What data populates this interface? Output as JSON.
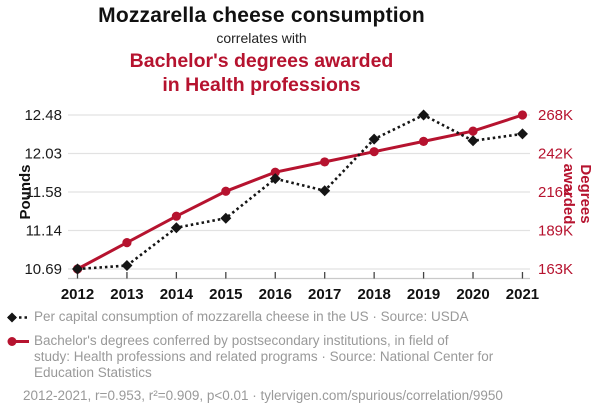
{
  "header": {
    "title": "Mozzarella cheese consumption",
    "connector": "correlates with",
    "subtitle_line1": "Bachelor's degrees awarded",
    "subtitle_line2": "in Health professions"
  },
  "chart_data": {
    "type": "line",
    "x": [
      2012,
      2013,
      2014,
      2015,
      2016,
      2017,
      2018,
      2019,
      2020,
      2021
    ],
    "series": [
      {
        "name": "Per capital consumption of mozzarella cheese in the US",
        "axis": "left",
        "color": "#151515",
        "line_style": "dashed",
        "marker": "diamond",
        "values": [
          10.69,
          10.73,
          11.17,
          11.28,
          11.74,
          11.6,
          12.2,
          12.48,
          12.18,
          12.26
        ]
      },
      {
        "name": "Bachelor's degrees conferred by postsecondary institutions, in field of study: Health professions and related programs",
        "axis": "right",
        "color": "#b6132f",
        "line_style": "solid",
        "marker": "circle",
        "values": [
          163000,
          181000,
          199000,
          216000,
          229000,
          236000,
          243000,
          250000,
          257000,
          268000
        ]
      }
    ],
    "left_axis": {
      "label": "Pounds",
      "min": 10.69,
      "max": 12.48,
      "ticks": [
        "12.48",
        "12.03",
        "11.58",
        "11.14",
        "10.69"
      ]
    },
    "right_axis": {
      "label": "Degrees awarded",
      "min": 163000,
      "max": 268000,
      "ticks": [
        "268K",
        "242K",
        "216K",
        "189K",
        "163K"
      ]
    },
    "grid": true,
    "legend_position": "bottom"
  },
  "legend": {
    "items": [
      {
        "marker": "black-diamond-dashed",
        "lines": [
          "Per capital consumption of mozzarella cheese in the US · Source: USDA"
        ]
      },
      {
        "marker": "red-circle-solid",
        "lines": [
          "Bachelor's degrees conferred by postsecondary institutions, in field of",
          "study: Health professions and related programs · Source: National Center for",
          "Education Statistics"
        ]
      }
    ]
  },
  "footer": {
    "stats": "2012-2021, r=0.953, r²=0.909, p<0.01 · tylervigen.com/spurious/correlation/9950"
  },
  "colors": {
    "accent_red": "#b6132f",
    "text_black": "#111111",
    "muted_gray": "#999999",
    "gridline": "#e2e2e2",
    "axis_line": "#c9c9c9"
  }
}
